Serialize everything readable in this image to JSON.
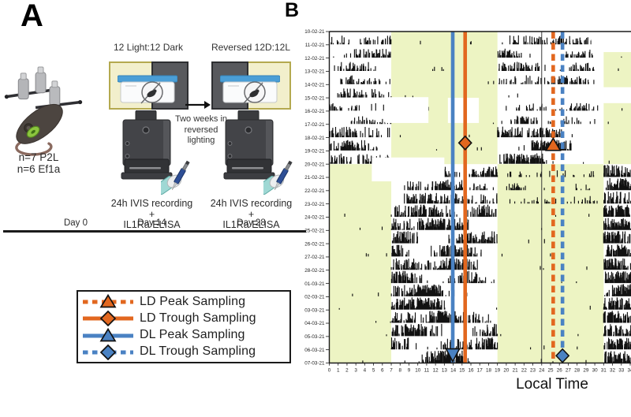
{
  "panel_a": {
    "label": "A",
    "cohort": "n=7 P2L\nn=6 Ef1a",
    "cage1_title": "12 Light:12 Dark",
    "cage2_title": "Reversed 12D:12L",
    "transition_note": "Two weeks in\nreversed\nlighting",
    "ivis1_caption": "24h IVIS recording +\nIL1Ra ELISA",
    "ivis2_caption": "24h IVIS recording +\nIL1Ra ELISA",
    "timeline": {
      "start": "Day 0",
      "mid": "Day 14",
      "end": "Day 28"
    }
  },
  "legend": {
    "items": [
      {
        "label": "LD Peak Sampling",
        "color": "#E2671F",
        "line": "dashed",
        "marker": "triangle"
      },
      {
        "label": "LD Trough Sampling",
        "color": "#E2671F",
        "line": "solid",
        "marker": "diamond"
      },
      {
        "label": "DL Peak Sampling",
        "color": "#4A82C3",
        "line": "solid",
        "marker": "triangle"
      },
      {
        "label": "DL Trough Sampling",
        "color": "#4A82C3",
        "line": "dashed",
        "marker": "diamond"
      }
    ]
  },
  "panel_b": {
    "label": "B",
    "xlabel": "Local Time"
  },
  "chart_data": {
    "type": "actogram-double-plotted",
    "xlabel": "Local Time",
    "dates": [
      "10-02-21",
      "11-02-21",
      "12-02-21",
      "13-02-21",
      "14-02-21",
      "15-02-21",
      "16-02-21",
      "17-02-21",
      "18-02-21",
      "19-02-21",
      "20-02-21",
      "21-02-21",
      "22-02-21",
      "23-02-21",
      "24-02-21",
      "25-02-21",
      "26-02-21",
      "27-02-21",
      "28-02-21",
      "01-03-21",
      "02-03-21",
      "03-03-21",
      "04-03-21",
      "05-03-21",
      "06-03-21",
      "07-03-21"
    ],
    "x_ticks": [
      0,
      1,
      2,
      3,
      4,
      5,
      6,
      7,
      8,
      9,
      10,
      11,
      12,
      13,
      14,
      15,
      16,
      17,
      18,
      19,
      20,
      21,
      22,
      23,
      24,
      25,
      26,
      27,
      28,
      29,
      30,
      31,
      32,
      33,
      34
    ],
    "hours_visible": [
      0,
      34.09
    ],
    "light_color": "#EDF4C3",
    "activity_color": "#111111",
    "day_divider_hour": 24,
    "phases": [
      {
        "name": "LD (12 Light:12 Dark)",
        "row_start": 0,
        "row_end": 9,
        "light_hours": [
          [
            7,
            19
          ],
          [
            31,
            43
          ]
        ],
        "dark_hours": [
          [
            0,
            7
          ],
          [
            19,
            31
          ]
        ]
      },
      {
        "name": "DL (Reversed 12D:12L)",
        "row_start": 10,
        "row_end": 24,
        "light_hours": [
          [
            0,
            7
          ],
          [
            19,
            31
          ],
          [
            43,
            48
          ]
        ],
        "dark_hours": [
          [
            7,
            19
          ],
          [
            31,
            43
          ]
        ]
      }
    ],
    "sampling_lines": [
      {
        "label": "LD Peak Sampling",
        "hour": 25.3,
        "style": "dashed",
        "color": "#E2671F",
        "marker": "triangle-up",
        "marker_row": 8.55
      },
      {
        "label": "LD Trough Sampling",
        "hour": 15.35,
        "style": "solid",
        "color": "#E2671F",
        "marker": "diamond",
        "marker_row": 8.4
      },
      {
        "label": "DL Peak Sampling",
        "hour": 13.95,
        "style": "solid",
        "color": "#4A82C3",
        "marker": "triangle-down",
        "marker_row": 24.35
      },
      {
        "label": "DL Trough Sampling",
        "hour": 26.35,
        "style": "dashed",
        "color": "#4A82C3",
        "marker": "diamond",
        "marker_row": 24.45
      }
    ],
    "data_gaps": [
      {
        "hours": [
          29.6,
          34.09
        ],
        "rows": [
          0,
          1.55
        ]
      },
      {
        "hours": [
          6.3,
          11.2
        ],
        "rows": [
          4.95,
          6.9
        ]
      },
      {
        "hours": [
          13.4,
          16.9
        ],
        "rows": [
          5.0,
          6.9
        ]
      },
      {
        "hours": [
          25.5,
          34.09
        ],
        "rows": [
          4.2,
          5.4
        ]
      },
      {
        "hours": [
          4.8,
          13.0
        ],
        "rows": [
          9.5,
          11.3
        ]
      }
    ]
  }
}
